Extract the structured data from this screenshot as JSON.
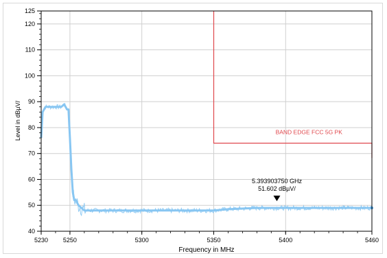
{
  "chart_data": {
    "type": "line",
    "xlabel": "Frequency in MHz",
    "ylabel": "Level in dBµV/",
    "xlim": [
      5230,
      5460
    ],
    "ylim": [
      40,
      125
    ],
    "x_ticks": [
      5230,
      5250,
      5300,
      5350,
      5400,
      5460
    ],
    "y_ticks": [
      40,
      50,
      60,
      70,
      80,
      90,
      100,
      110,
      120,
      125
    ],
    "grid": true,
    "colors": {
      "trace": "#88c6f2",
      "limit": "#e0474c",
      "grid": "#cfcfcf",
      "axis": "#000000"
    },
    "series": [
      {
        "kind": "trace",
        "x": [
          5230,
          5231,
          5233,
          5236,
          5240,
          5244,
          5246,
          5247,
          5248,
          5249,
          5250,
          5251,
          5252,
          5253,
          5254,
          5255,
          5256,
          5258,
          5260,
          5264,
          5270,
          5280,
          5300,
          5320,
          5340,
          5350,
          5360,
          5380,
          5393.9,
          5400,
          5420,
          5440,
          5460
        ],
        "y": [
          76,
          86,
          88,
          88,
          88,
          88,
          89,
          88,
          87,
          87,
          76,
          64,
          55,
          52,
          52,
          51,
          50,
          49,
          48,
          48,
          48,
          48,
          48,
          48,
          48,
          48,
          48.5,
          49,
          49,
          49,
          49,
          49,
          49
        ]
      },
      {
        "kind": "limit",
        "x": [
          5350,
          5350,
          5460,
          5460
        ],
        "y": [
          125,
          74,
          74,
          68.3
        ]
      }
    ],
    "annotations": [
      {
        "kind": "limit-label",
        "text": "BAND EDGE  FCC 5G PK",
        "x": 5393,
        "y": 77.5
      },
      {
        "kind": "marker",
        "x": 5393.9,
        "y": 51.602,
        "label_freq": "5.393903750 GHz",
        "label_level": "51.602 dBµV/"
      }
    ]
  }
}
